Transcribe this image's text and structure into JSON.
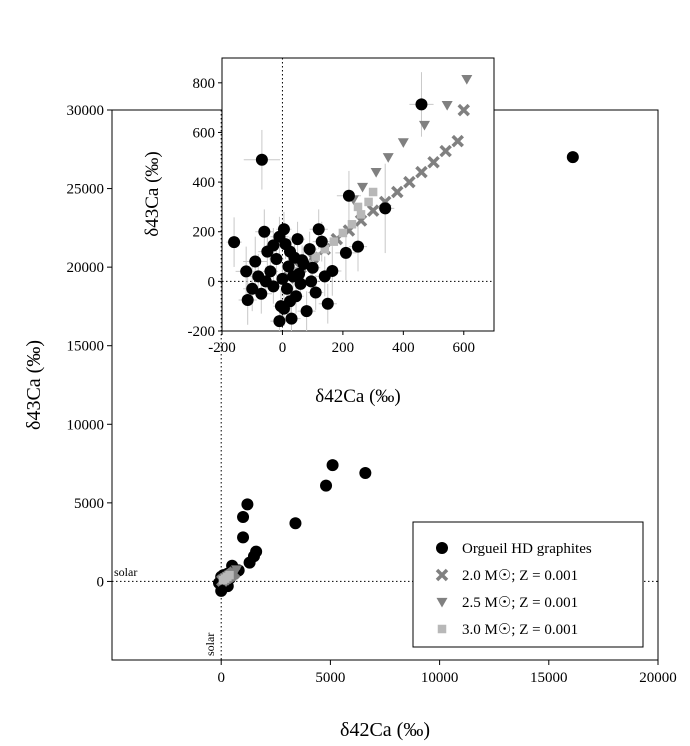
{
  "chart_data": [
    {
      "type": "scatter",
      "xlabel": "δ42Ca (‰)",
      "ylabel": "δ43Ca (‰)",
      "xlim": [
        -5000,
        20000
      ],
      "ylim": [
        -5000,
        30000
      ],
      "xticks": [
        0,
        5000,
        10000,
        15000,
        20000
      ],
      "yticks": [
        0,
        5000,
        10000,
        15000,
        20000,
        25000,
        30000
      ],
      "xtick_labels": [
        "0",
        "5000",
        "10000",
        "15000",
        "20000"
      ],
      "ytick_labels": [
        "0",
        "5000",
        "10000",
        "15000",
        "20000",
        "25000",
        "30000"
      ],
      "reference_lines": {
        "x_label": "solar",
        "y_label": "solar"
      },
      "legend_position": "bottom-right",
      "series": [
        {
          "name": "Orgueil HD graphites",
          "marker": "circle",
          "color": "#000000",
          "points": [
            [
              16100,
              27000
            ],
            [
              5100,
              7400
            ],
            [
              6600,
              6900
            ],
            [
              4800,
              6100
            ],
            [
              1200,
              4900
            ],
            [
              1000,
              4100
            ],
            [
              1000,
              2800
            ],
            [
              3400,
              3700
            ],
            [
              1600,
              1900
            ],
            [
              1500,
              1600
            ],
            [
              1300,
              1200
            ],
            [
              500,
              1000
            ],
            [
              800,
              700
            ],
            [
              300,
              500
            ],
            [
              100,
              400
            ],
            [
              0,
              300
            ],
            [
              400,
              200
            ],
            [
              200,
              0
            ],
            [
              -100,
              -100
            ],
            [
              300,
              -300
            ],
            [
              0,
              -600
            ]
          ]
        },
        {
          "name": "2.0 M☉; Z = 0.001",
          "marker": "x",
          "color": "#808080",
          "points": [
            [
              50,
              50
            ],
            [
              150,
              140
            ],
            [
              250,
              230
            ],
            [
              350,
              320
            ],
            [
              450,
              410
            ],
            [
              550,
              500
            ],
            [
              600,
              560
            ]
          ]
        },
        {
          "name": "2.5 M☉; Z = 0.001",
          "marker": "triangle",
          "color": "#808080",
          "points": [
            [
              100,
              100
            ],
            [
              250,
              260
            ],
            [
              400,
              420
            ],
            [
              550,
              580
            ],
            [
              700,
              760
            ]
          ]
        },
        {
          "name": "3.0 M☉; Z = 0.001",
          "marker": "square",
          "color": "#b8b8b8",
          "points": [
            [
              80,
              80
            ],
            [
              180,
              180
            ],
            [
              280,
              290
            ],
            [
              380,
              400
            ]
          ]
        }
      ]
    },
    {
      "type": "scatter",
      "inset": true,
      "xlabel": "δ42Ca (‰)",
      "ylabel": "δ43Ca (‰)",
      "xlim": [
        -200,
        700
      ],
      "ylim": [
        -200,
        900
      ],
      "xticks": [
        -200,
        0,
        200,
        400,
        600
      ],
      "yticks": [
        -200,
        0,
        200,
        400,
        600,
        800
      ],
      "xtick_labels": [
        "-200",
        "0",
        "200",
        "400",
        "600"
      ],
      "ytick_labels": [
        "-200",
        "0",
        "200",
        "400",
        "600",
        "800"
      ],
      "series": [
        {
          "name": "Orgueil HD graphites",
          "marker": "circle",
          "color": "#000000",
          "points": [
            [
              -160,
              158,
              25,
              100
            ],
            [
              -68,
              490,
              60,
              120
            ],
            [
              460,
              713,
              40,
              130
            ],
            [
              340,
              294,
              30,
              180
            ],
            [
              220,
              345,
              40,
              100
            ],
            [
              250,
              140,
              30,
              100
            ],
            [
              210,
              115,
              35,
              110
            ],
            [
              165,
              42,
              30,
              100
            ],
            [
              -90,
              80,
              40,
              100
            ],
            [
              -120,
              40,
              35,
              100
            ],
            [
              -115,
              -75,
              30,
              100
            ],
            [
              -100,
              -30,
              30,
              90
            ],
            [
              -80,
              20,
              30,
              90
            ],
            [
              -70,
              -50,
              35,
              80
            ],
            [
              -60,
              200,
              30,
              90
            ],
            [
              -50,
              120,
              30,
              80
            ],
            [
              -40,
              40,
              25,
              70
            ],
            [
              -30,
              -20,
              25,
              70
            ],
            [
              -20,
              90,
              25,
              70
            ],
            [
              -10,
              180,
              30,
              80
            ],
            [
              -5,
              -100,
              25,
              70
            ],
            [
              0,
              10,
              20,
              60
            ],
            [
              5,
              210,
              25,
              70
            ],
            [
              10,
              150,
              20,
              60
            ],
            [
              15,
              -30,
              20,
              60
            ],
            [
              20,
              60,
              20,
              60
            ],
            [
              25,
              120,
              20,
              60
            ],
            [
              30,
              -150,
              30,
              80
            ],
            [
              35,
              20,
              20,
              60
            ],
            [
              40,
              95,
              20,
              60
            ],
            [
              45,
              -60,
              25,
              70
            ],
            [
              50,
              170,
              25,
              70
            ],
            [
              55,
              30,
              20,
              60
            ],
            [
              60,
              -10,
              20,
              60
            ],
            [
              70,
              70,
              25,
              70
            ],
            [
              80,
              -120,
              30,
              80
            ],
            [
              90,
              130,
              25,
              70
            ],
            [
              100,
              55,
              25,
              70
            ],
            [
              110,
              -45,
              25,
              70
            ],
            [
              120,
              210,
              30,
              80
            ],
            [
              130,
              160,
              30,
              80
            ],
            [
              140,
              20,
              30,
              80
            ],
            [
              150,
              -90,
              30,
              80
            ],
            [
              -10,
              -160,
              30,
              80
            ],
            [
              5,
              -110,
              25,
              70
            ],
            [
              -30,
              145,
              25,
              70
            ],
            [
              65,
              85,
              20,
              60
            ],
            [
              25,
              -80,
              20,
              60
            ],
            [
              -55,
              0,
              25,
              60
            ],
            [
              95,
              0,
              25,
              60
            ]
          ]
        },
        {
          "name": "2.0 M☉; Z = 0.001",
          "marker": "x",
          "color": "#808080",
          "points": [
            [
              20,
              15
            ],
            [
              60,
              55
            ],
            [
              100,
              95
            ],
            [
              140,
              130
            ],
            [
              180,
              170
            ],
            [
              220,
              205
            ],
            [
              260,
              245
            ],
            [
              300,
              285
            ],
            [
              340,
              320
            ],
            [
              380,
              360
            ],
            [
              420,
              400
            ],
            [
              460,
              440
            ],
            [
              500,
              480
            ],
            [
              540,
              525
            ],
            [
              580,
              565
            ],
            [
              600,
              690
            ]
          ]
        },
        {
          "name": "2.5 M☉; Z = 0.001",
          "marker": "triangle",
          "color": "#808080",
          "points": [
            [
              235,
              330
            ],
            [
              265,
              380
            ],
            [
              310,
              440
            ],
            [
              350,
              500
            ],
            [
              400,
              560
            ],
            [
              470,
              630
            ],
            [
              545,
              710
            ],
            [
              610,
              815
            ]
          ]
        },
        {
          "name": "3.0 M☉; Z = 0.001",
          "marker": "square",
          "color": "#b8b8b8",
          "points": [
            [
              50,
              40
            ],
            [
              80,
              70
            ],
            [
              110,
              100
            ],
            [
              140,
              130
            ],
            [
              170,
              160
            ],
            [
              200,
              195
            ],
            [
              230,
              230
            ],
            [
              260,
              270
            ],
            [
              285,
              320
            ],
            [
              300,
              360
            ],
            [
              250,
              300
            ]
          ]
        }
      ]
    }
  ]
}
